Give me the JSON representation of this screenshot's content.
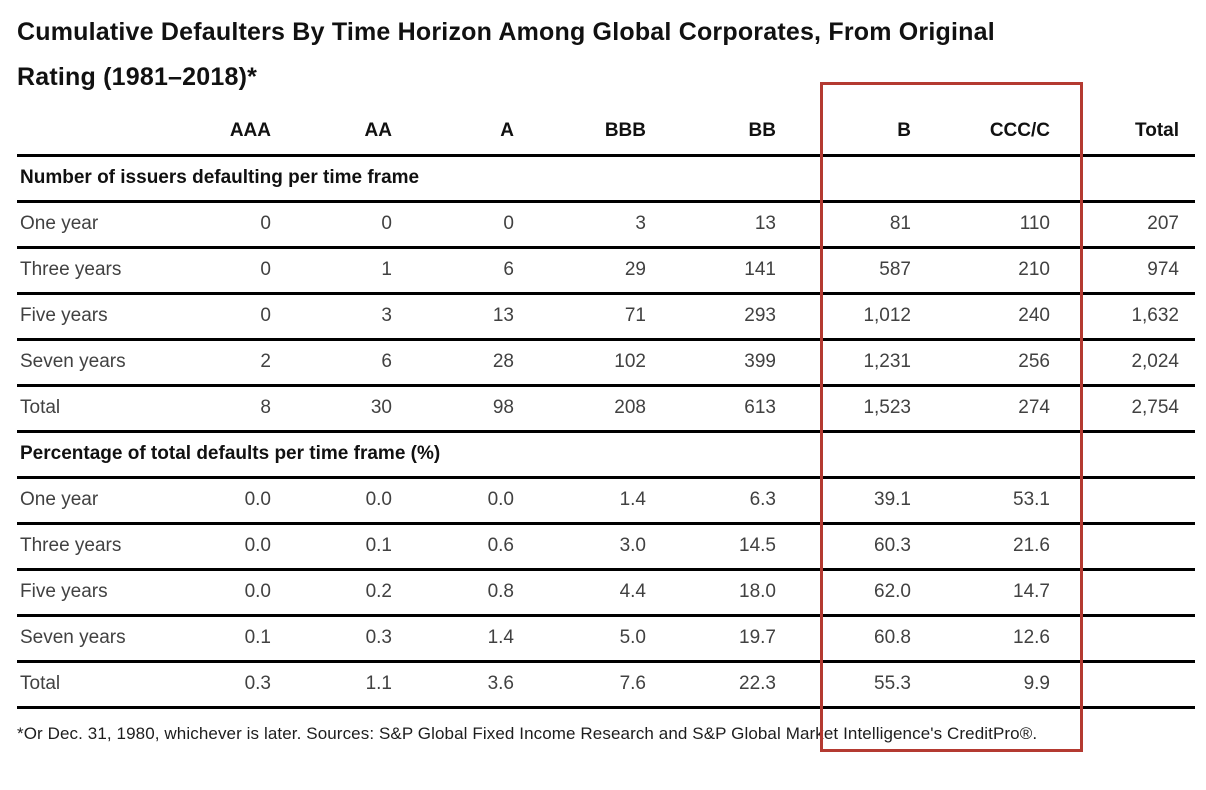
{
  "title": {
    "line1": "Cumulative Defaulters By Time Horizon Among Global Corporates, From Original",
    "line2": "Rating (1981–2018)*"
  },
  "table": {
    "columns": [
      "",
      "AAA",
      "AA",
      "A",
      "BBB",
      "BB",
      "B",
      "CCC/C",
      "Total"
    ],
    "sections": [
      {
        "header": "Number of issuers defaulting per time frame",
        "rows": [
          {
            "label": "One year",
            "values": [
              "0",
              "0",
              "0",
              "3",
              "13",
              "81",
              "110",
              "207"
            ]
          },
          {
            "label": "Three years",
            "values": [
              "0",
              "1",
              "6",
              "29",
              "141",
              "587",
              "210",
              "974"
            ]
          },
          {
            "label": "Five years",
            "values": [
              "0",
              "3",
              "13",
              "71",
              "293",
              "1,012",
              "240",
              "1,632"
            ]
          },
          {
            "label": "Seven years",
            "values": [
              "2",
              "6",
              "28",
              "102",
              "399",
              "1,231",
              "256",
              "2,024"
            ]
          },
          {
            "label": "Total",
            "values": [
              "8",
              "30",
              "98",
              "208",
              "613",
              "1,523",
              "274",
              "2,754"
            ]
          }
        ]
      },
      {
        "header": "Percentage of total defaults per time frame (%)",
        "rows": [
          {
            "label": "One year",
            "values": [
              "0.0",
              "0.0",
              "0.0",
              "1.4",
              "6.3",
              "39.1",
              "53.1",
              ""
            ]
          },
          {
            "label": "Three years",
            "values": [
              "0.0",
              "0.1",
              "0.6",
              "3.0",
              "14.5",
              "60.3",
              "21.6",
              ""
            ]
          },
          {
            "label": "Five years",
            "values": [
              "0.0",
              "0.2",
              "0.8",
              "4.4",
              "18.0",
              "62.0",
              "14.7",
              ""
            ]
          },
          {
            "label": "Seven years",
            "values": [
              "0.1",
              "0.3",
              "1.4",
              "5.0",
              "19.7",
              "60.8",
              "12.6",
              ""
            ]
          },
          {
            "label": "Total",
            "values": [
              "0.3",
              "1.1",
              "3.6",
              "7.6",
              "22.3",
              "55.3",
              "9.9",
              ""
            ]
          }
        ]
      }
    ]
  },
  "highlight": {
    "columns": [
      "B",
      "CCC/C"
    ],
    "color": "#b43a31"
  },
  "footnote": "*Or Dec. 31, 1980, whichever is later. Sources: S&P Global Fixed Income Research and S&P Global Market Intelligence's CreditPro®.",
  "chart_data": {
    "type": "table",
    "title": "Cumulative Defaulters By Time Horizon Among Global Corporates, From Original Rating (1981–2018)*",
    "columns": [
      "AAA",
      "AA",
      "A",
      "BBB",
      "BB",
      "B",
      "CCC/C",
      "Total"
    ],
    "sections": [
      {
        "name": "Number of issuers defaulting per time frame",
        "row_labels": [
          "One year",
          "Three years",
          "Five years",
          "Seven years",
          "Total"
        ],
        "rows": [
          [
            0,
            0,
            0,
            3,
            13,
            81,
            110,
            207
          ],
          [
            0,
            1,
            6,
            29,
            141,
            587,
            210,
            974
          ],
          [
            0,
            3,
            13,
            71,
            293,
            1012,
            240,
            1632
          ],
          [
            2,
            6,
            28,
            102,
            399,
            1231,
            256,
            2024
          ],
          [
            8,
            30,
            98,
            208,
            613,
            1523,
            274,
            2754
          ]
        ]
      },
      {
        "name": "Percentage of total defaults per time frame (%)",
        "row_labels": [
          "One year",
          "Three years",
          "Five years",
          "Seven years",
          "Total"
        ],
        "rows": [
          [
            0.0,
            0.0,
            0.0,
            1.4,
            6.3,
            39.1,
            53.1,
            null
          ],
          [
            0.0,
            0.1,
            0.6,
            3.0,
            14.5,
            60.3,
            21.6,
            null
          ],
          [
            0.0,
            0.2,
            0.8,
            4.4,
            18.0,
            62.0,
            14.7,
            null
          ],
          [
            0.1,
            0.3,
            1.4,
            5.0,
            19.7,
            60.8,
            12.6,
            null
          ],
          [
            0.3,
            1.1,
            3.6,
            7.6,
            22.3,
            55.3,
            9.9,
            null
          ]
        ]
      }
    ],
    "highlighted_columns": [
      "B",
      "CCC/C"
    ],
    "footnote": "*Or Dec. 31, 1980, whichever is later. Sources: S&P Global Fixed Income Research and S&P Global Market Intelligence's CreditPro®."
  }
}
